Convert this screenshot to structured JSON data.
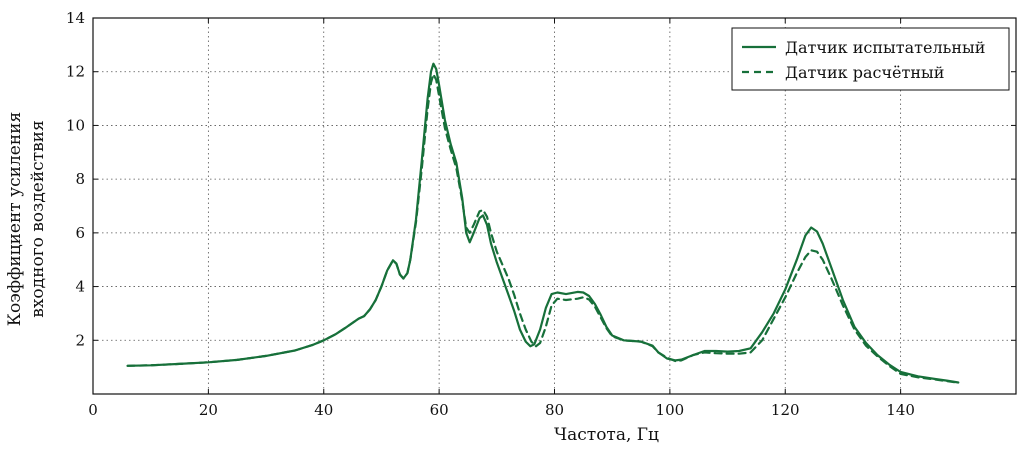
{
  "chart_data": {
    "type": "line",
    "title": "",
    "xlabel": "Частота, Гц",
    "ylabel": [
      "Коэффициент усиления",
      "входного воздействия"
    ],
    "xlim": [
      0,
      160
    ],
    "ylim": [
      0,
      14
    ],
    "xticks": [
      0,
      20,
      40,
      60,
      80,
      100,
      120,
      140
    ],
    "yticks": [
      2,
      4,
      6,
      8,
      10,
      12,
      14
    ],
    "xtick_labels": [
      "0",
      "20",
      "40",
      "60",
      "80",
      "100",
      "120",
      "140"
    ],
    "ytick_labels": [
      "2",
      "4",
      "6",
      "8",
      "10",
      "12",
      "14"
    ],
    "grid": true,
    "legend_position": "top-right",
    "color": "#17703a",
    "series": [
      {
        "name": "Датчик испытательный",
        "style": "solid",
        "points": [
          [
            6,
            1.05
          ],
          [
            10,
            1.07
          ],
          [
            15,
            1.12
          ],
          [
            20,
            1.18
          ],
          [
            25,
            1.27
          ],
          [
            30,
            1.42
          ],
          [
            35,
            1.62
          ],
          [
            38,
            1.82
          ],
          [
            40,
            2.0
          ],
          [
            42,
            2.22
          ],
          [
            44,
            2.5
          ],
          [
            46,
            2.8
          ],
          [
            47,
            2.9
          ],
          [
            48,
            3.15
          ],
          [
            49,
            3.5
          ],
          [
            50,
            4.0
          ],
          [
            51,
            4.6
          ],
          [
            52,
            4.98
          ],
          [
            52.6,
            4.85
          ],
          [
            53.2,
            4.45
          ],
          [
            53.8,
            4.3
          ],
          [
            54.5,
            4.5
          ],
          [
            55,
            5.0
          ],
          [
            56,
            6.5
          ],
          [
            57,
            8.7
          ],
          [
            58,
            11.0
          ],
          [
            58.6,
            12.0
          ],
          [
            59,
            12.3
          ],
          [
            59.5,
            12.1
          ],
          [
            60,
            11.5
          ],
          [
            61,
            10.2
          ],
          [
            62,
            9.3
          ],
          [
            63,
            8.6
          ],
          [
            64,
            7.3
          ],
          [
            64.7,
            6.0
          ],
          [
            65.3,
            5.65
          ],
          [
            66,
            6.0
          ],
          [
            67,
            6.55
          ],
          [
            67.6,
            6.65
          ],
          [
            68.3,
            6.3
          ],
          [
            69,
            5.6
          ],
          [
            70,
            4.9
          ],
          [
            71,
            4.3
          ],
          [
            72,
            3.7
          ],
          [
            73,
            3.1
          ],
          [
            74,
            2.4
          ],
          [
            75,
            1.95
          ],
          [
            75.8,
            1.78
          ],
          [
            76.5,
            1.85
          ],
          [
            77.5,
            2.4
          ],
          [
            78.5,
            3.2
          ],
          [
            79.5,
            3.72
          ],
          [
            80.5,
            3.78
          ],
          [
            82,
            3.72
          ],
          [
            84,
            3.8
          ],
          [
            85,
            3.78
          ],
          [
            86,
            3.65
          ],
          [
            87,
            3.35
          ],
          [
            88,
            2.95
          ],
          [
            89,
            2.5
          ],
          [
            90,
            2.18
          ],
          [
            92,
            2.0
          ],
          [
            95,
            1.95
          ],
          [
            97,
            1.8
          ],
          [
            98,
            1.55
          ],
          [
            99.5,
            1.32
          ],
          [
            101,
            1.25
          ],
          [
            102,
            1.28
          ],
          [
            104,
            1.45
          ],
          [
            106,
            1.6
          ],
          [
            108,
            1.6
          ],
          [
            110,
            1.58
          ],
          [
            112,
            1.6
          ],
          [
            114,
            1.7
          ],
          [
            116,
            2.3
          ],
          [
            118,
            3.0
          ],
          [
            120,
            3.9
          ],
          [
            122,
            5.0
          ],
          [
            123.5,
            5.9
          ],
          [
            124.5,
            6.2
          ],
          [
            125.5,
            6.05
          ],
          [
            126.5,
            5.6
          ],
          [
            128,
            4.7
          ],
          [
            130,
            3.5
          ],
          [
            132,
            2.5
          ],
          [
            134,
            1.9
          ],
          [
            136,
            1.45
          ],
          [
            138,
            1.1
          ],
          [
            140,
            0.82
          ],
          [
            143,
            0.66
          ],
          [
            146,
            0.56
          ],
          [
            148,
            0.5
          ],
          [
            150,
            0.43
          ]
        ]
      },
      {
        "name": "Датчик расчётный",
        "style": "dashed",
        "points": [
          [
            6,
            1.05
          ],
          [
            10,
            1.07
          ],
          [
            15,
            1.12
          ],
          [
            20,
            1.18
          ],
          [
            25,
            1.27
          ],
          [
            30,
            1.42
          ],
          [
            35,
            1.62
          ],
          [
            38,
            1.82
          ],
          [
            40,
            2.0
          ],
          [
            42,
            2.22
          ],
          [
            44,
            2.5
          ],
          [
            46,
            2.8
          ],
          [
            47,
            2.9
          ],
          [
            48,
            3.15
          ],
          [
            49,
            3.5
          ],
          [
            50,
            4.0
          ],
          [
            51,
            4.6
          ],
          [
            52,
            4.98
          ],
          [
            52.6,
            4.85
          ],
          [
            53.2,
            4.45
          ],
          [
            53.8,
            4.3
          ],
          [
            54.5,
            4.5
          ],
          [
            55,
            5.0
          ],
          [
            56,
            6.4
          ],
          [
            57,
            8.4
          ],
          [
            58,
            10.6
          ],
          [
            58.6,
            11.6
          ],
          [
            59,
            11.9
          ],
          [
            59.5,
            11.7
          ],
          [
            60,
            11.1
          ],
          [
            61,
            9.9
          ],
          [
            62,
            9.1
          ],
          [
            63,
            8.4
          ],
          [
            64,
            7.2
          ],
          [
            64.7,
            6.2
          ],
          [
            65.3,
            6.0
          ],
          [
            66,
            6.3
          ],
          [
            67,
            6.8
          ],
          [
            67.6,
            6.85
          ],
          [
            68.3,
            6.6
          ],
          [
            69,
            6.0
          ],
          [
            70,
            5.3
          ],
          [
            71,
            4.8
          ],
          [
            72,
            4.3
          ],
          [
            73,
            3.7
          ],
          [
            74,
            3.0
          ],
          [
            75,
            2.4
          ],
          [
            76,
            1.95
          ],
          [
            76.8,
            1.78
          ],
          [
            77.5,
            1.9
          ],
          [
            78.5,
            2.5
          ],
          [
            79.5,
            3.3
          ],
          [
            80.5,
            3.55
          ],
          [
            82,
            3.5
          ],
          [
            84,
            3.55
          ],
          [
            85,
            3.6
          ],
          [
            86,
            3.52
          ],
          [
            87,
            3.25
          ],
          [
            88,
            2.85
          ],
          [
            89,
            2.45
          ],
          [
            90,
            2.15
          ],
          [
            92,
            2.0
          ],
          [
            95,
            1.95
          ],
          [
            97,
            1.78
          ],
          [
            98,
            1.55
          ],
          [
            99.5,
            1.35
          ],
          [
            101,
            1.22
          ],
          [
            102,
            1.25
          ],
          [
            104,
            1.45
          ],
          [
            106,
            1.55
          ],
          [
            108,
            1.52
          ],
          [
            110,
            1.5
          ],
          [
            112,
            1.5
          ],
          [
            114,
            1.55
          ],
          [
            116,
            2.0
          ],
          [
            118,
            2.8
          ],
          [
            120,
            3.6
          ],
          [
            122,
            4.5
          ],
          [
            123.5,
            5.1
          ],
          [
            124.5,
            5.35
          ],
          [
            125.5,
            5.3
          ],
          [
            126.5,
            5.0
          ],
          [
            128,
            4.3
          ],
          [
            130,
            3.3
          ],
          [
            132,
            2.4
          ],
          [
            134,
            1.8
          ],
          [
            136,
            1.4
          ],
          [
            138,
            1.05
          ],
          [
            140,
            0.75
          ],
          [
            143,
            0.62
          ],
          [
            146,
            0.54
          ],
          [
            148,
            0.48
          ],
          [
            150,
            0.42
          ]
        ]
      }
    ]
  }
}
